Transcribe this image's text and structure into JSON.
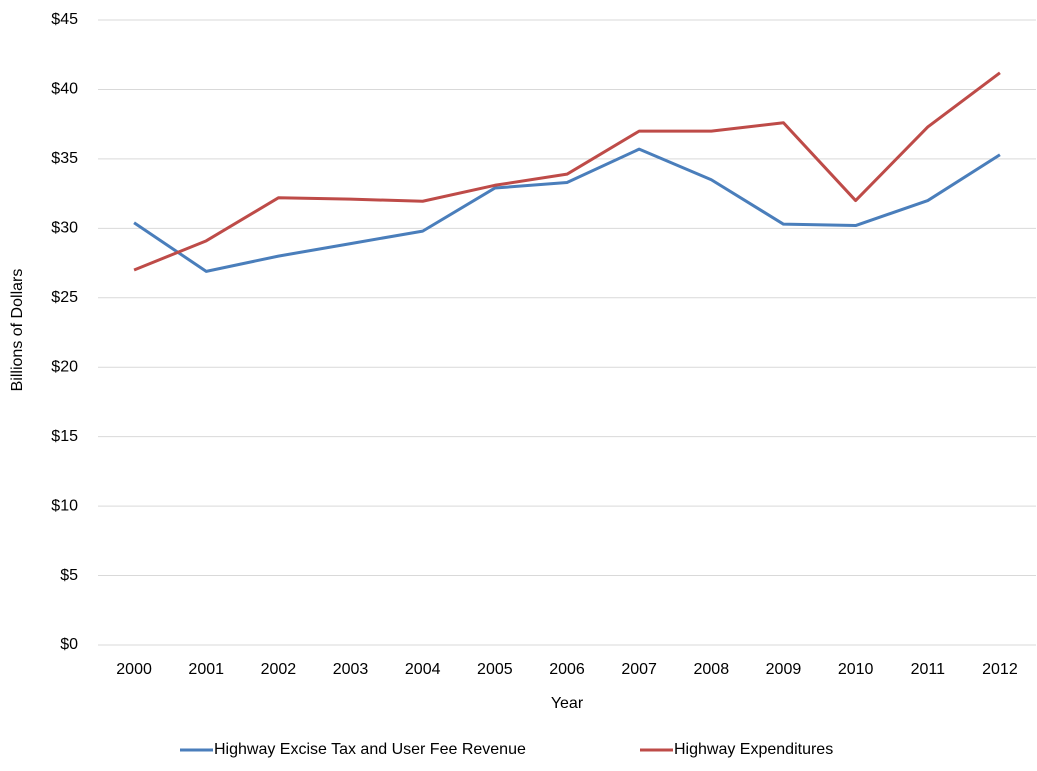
{
  "chart_data": {
    "type": "line",
    "x_label": "Year",
    "y_label": "Billions of Dollars",
    "categories": [
      "2000",
      "2001",
      "2002",
      "2003",
      "2004",
      "2005",
      "2006",
      "2007",
      "2008",
      "2009",
      "2010",
      "2011",
      "2012"
    ],
    "series": [
      {
        "name": "Highway Excise Tax and User Fee Revenue",
        "color": "#4a7ebb",
        "values": [
          30.4,
          26.9,
          28.0,
          28.9,
          29.8,
          32.9,
          33.3,
          35.7,
          33.5,
          30.3,
          30.2,
          32.0,
          35.3
        ]
      },
      {
        "name": "Highway Expenditures",
        "color": "#be4b48",
        "values": [
          27.0,
          29.1,
          32.2,
          32.1,
          31.95,
          33.1,
          33.9,
          37.0,
          37.0,
          37.6,
          32.0,
          37.3,
          41.2
        ]
      }
    ],
    "ylim": [
      0,
      45
    ],
    "yticks": [
      {
        "value": 0,
        "label": "$0"
      },
      {
        "value": 5,
        "label": "$5"
      },
      {
        "value": 10,
        "label": "$10"
      },
      {
        "value": 15,
        "label": "$15"
      },
      {
        "value": 20,
        "label": "$20"
      },
      {
        "value": 25,
        "label": "$25"
      },
      {
        "value": 30,
        "label": "$30"
      },
      {
        "value": 35,
        "label": "$35"
      },
      {
        "value": 40,
        "label": "$40"
      },
      {
        "value": 45,
        "label": "$45"
      }
    ],
    "grid": true,
    "legend": "bottom"
  }
}
